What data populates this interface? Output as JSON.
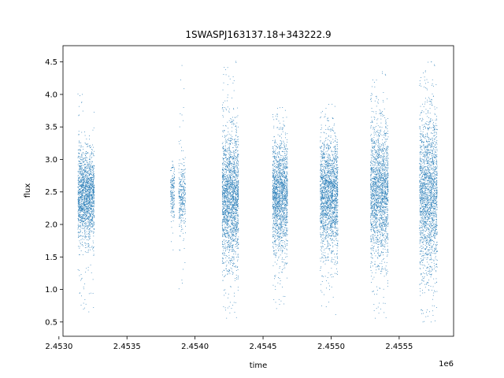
{
  "chart_data": {
    "type": "scatter",
    "title": "1SWASPJ163137.18+343222.9",
    "xlabel": "time",
    "ylabel": "flux",
    "x_offset_label": "1e6",
    "xlim": [
      2453030,
      2455900
    ],
    "ylim": [
      0.28,
      4.75
    ],
    "x_ticks": [
      2453000,
      2453500,
      2454000,
      2454500,
      2455000,
      2455500
    ],
    "x_tick_labels": [
      "2.4530",
      "2.4535",
      "2.4540",
      "2.4545",
      "2.4550",
      "2.4555"
    ],
    "y_ticks": [
      0.5,
      1.0,
      1.5,
      2.0,
      2.5,
      3.0,
      3.5,
      4.0,
      4.5
    ],
    "y_tick_labels": [
      "0.5",
      "1.0",
      "1.5",
      "2.0",
      "2.5",
      "3.0",
      "3.5",
      "4.0",
      "4.5"
    ],
    "grid": false,
    "legend": "none",
    "point_color": "#1f77b4",
    "series": [
      {
        "clusters": [
          {
            "x_range": [
              2453140,
              2453260
            ],
            "center": 2.45,
            "core": [
              1.8,
              3.0
            ],
            "extreme": [
              0.55,
              4.1
            ],
            "n": 1700
          },
          {
            "x_range": [
              2453820,
              2453850
            ],
            "center": 2.5,
            "core": [
              2.05,
              2.85
            ],
            "extreme": [
              1.3,
              3.0
            ],
            "n": 170
          },
          {
            "x_range": [
              2453880,
              2453930
            ],
            "center": 2.45,
            "core": [
              1.9,
              2.95
            ],
            "extreme": [
              0.55,
              4.45
            ],
            "n": 300
          },
          {
            "x_range": [
              2454200,
              2454320
            ],
            "center": 2.4,
            "core": [
              1.5,
              3.3
            ],
            "extreme": [
              0.55,
              4.55
            ],
            "n": 2000
          },
          {
            "x_range": [
              2454570,
              2454680
            ],
            "center": 2.45,
            "core": [
              1.55,
              3.1
            ],
            "extreme": [
              0.7,
              3.8
            ],
            "n": 1700
          },
          {
            "x_range": [
              2454920,
              2455050
            ],
            "center": 2.45,
            "core": [
              1.6,
              3.15
            ],
            "extreme": [
              0.6,
              3.85
            ],
            "n": 1900
          },
          {
            "x_range": [
              2455290,
              2455420
            ],
            "center": 2.5,
            "core": [
              1.55,
              3.4
            ],
            "extreme": [
              0.55,
              4.35
            ],
            "n": 1900
          },
          {
            "x_range": [
              2455650,
              2455780
            ],
            "center": 2.45,
            "core": [
              1.3,
              3.5
            ],
            "extreme": [
              0.5,
              4.5
            ],
            "n": 2000
          }
        ]
      }
    ]
  }
}
